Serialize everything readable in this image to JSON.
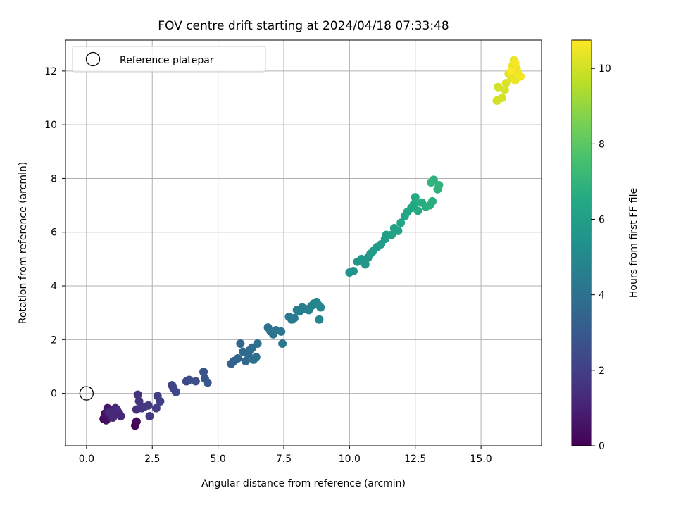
{
  "chart_data": {
    "type": "scatter",
    "title": "FOV centre drift starting at 2024/04/18 07:33:48",
    "xlabel": "Angular distance from reference (arcmin)",
    "ylabel": "Rotation from reference (arcmin)",
    "xlim": [
      -0.8,
      17.3
    ],
    "ylim": [
      -1.95,
      13.15
    ],
    "xticks": [
      0.0,
      2.5,
      5.0,
      7.5,
      10.0,
      12.5,
      15.0
    ],
    "xtick_labels": [
      "0.0",
      "2.5",
      "5.0",
      "7.5",
      "10.0",
      "12.5",
      "15.0"
    ],
    "yticks": [
      0,
      2,
      4,
      6,
      8,
      10,
      12
    ],
    "ytick_labels": [
      "0",
      "2",
      "4",
      "6",
      "8",
      "10",
      "12"
    ],
    "grid": true,
    "legend": {
      "placement": "upper-left",
      "entries": [
        "Reference platepar"
      ]
    },
    "reference_point": {
      "x": 0.0,
      "y": 0.0
    },
    "colorbar": {
      "label": "Hours from first FF file",
      "colormap": "viridis",
      "range": [
        0,
        10.75
      ],
      "ticks": [
        0,
        2,
        4,
        6,
        8,
        10
      ],
      "tick_labels": [
        "0",
        "2",
        "4",
        "6",
        "8",
        "10"
      ]
    },
    "points": [
      [
        1.85,
        -1.2,
        0.1
      ],
      [
        1.9,
        -1.05,
        0.2
      ],
      [
        0.65,
        -0.95,
        0.35
      ],
      [
        0.75,
        -1.0,
        0.4
      ],
      [
        0.7,
        -0.75,
        0.5
      ],
      [
        0.8,
        -0.55,
        0.6
      ],
      [
        0.9,
        -0.85,
        0.7
      ],
      [
        0.95,
        -0.65,
        0.8
      ],
      [
        1.05,
        -0.8,
        0.9
      ],
      [
        1.1,
        -0.55,
        1.0
      ],
      [
        1.2,
        -0.7,
        1.1
      ],
      [
        1.3,
        -0.85,
        1.2
      ],
      [
        1.0,
        -0.9,
        1.25
      ],
      [
        0.85,
        -0.7,
        1.3
      ],
      [
        1.15,
        -0.6,
        1.35
      ],
      [
        1.9,
        -0.6,
        1.45
      ],
      [
        1.95,
        -0.05,
        1.55
      ],
      [
        2.0,
        -0.3,
        1.6
      ],
      [
        2.1,
        -0.55,
        1.7
      ],
      [
        2.2,
        -0.5,
        1.75
      ],
      [
        2.35,
        -0.45,
        1.8
      ],
      [
        2.4,
        -0.85,
        1.85
      ],
      [
        2.65,
        -0.55,
        1.9
      ],
      [
        2.7,
        -0.1,
        1.95
      ],
      [
        2.8,
        -0.3,
        2.0
      ],
      [
        3.25,
        0.3,
        2.1
      ],
      [
        3.3,
        0.2,
        2.2
      ],
      [
        3.4,
        0.05,
        2.3
      ],
      [
        3.8,
        0.45,
        2.4
      ],
      [
        3.9,
        0.5,
        2.5
      ],
      [
        4.15,
        0.45,
        2.6
      ],
      [
        4.45,
        0.8,
        2.75
      ],
      [
        4.5,
        0.55,
        2.85
      ],
      [
        4.6,
        0.4,
        2.95
      ],
      [
        5.5,
        1.1,
        3.3
      ],
      [
        5.6,
        1.2,
        3.4
      ],
      [
        5.75,
        1.3,
        3.5
      ],
      [
        5.85,
        1.85,
        3.55
      ],
      [
        5.95,
        1.55,
        3.6
      ],
      [
        6.05,
        1.2,
        3.65
      ],
      [
        6.15,
        1.45,
        3.7
      ],
      [
        6.2,
        1.6,
        3.75
      ],
      [
        6.3,
        1.7,
        3.8
      ],
      [
        6.35,
        1.25,
        3.85
      ],
      [
        6.45,
        1.35,
        3.9
      ],
      [
        6.5,
        1.85,
        3.95
      ],
      [
        6.9,
        2.45,
        4.0
      ],
      [
        7.0,
        2.3,
        4.05
      ],
      [
        7.1,
        2.2,
        4.1
      ],
      [
        7.2,
        2.35,
        4.15
      ],
      [
        7.4,
        2.3,
        4.2
      ],
      [
        7.45,
        1.85,
        4.25
      ],
      [
        7.7,
        2.85,
        4.3
      ],
      [
        7.8,
        2.75,
        4.35
      ],
      [
        7.9,
        2.8,
        4.4
      ],
      [
        8.0,
        3.1,
        4.45
      ],
      [
        8.1,
        3.05,
        4.5
      ],
      [
        8.2,
        3.2,
        4.55
      ],
      [
        8.3,
        3.15,
        4.6
      ],
      [
        8.45,
        3.1,
        4.65
      ],
      [
        8.55,
        3.25,
        4.7
      ],
      [
        8.65,
        3.35,
        4.75
      ],
      [
        8.75,
        3.4,
        4.8
      ],
      [
        8.85,
        2.75,
        4.85
      ],
      [
        8.9,
        3.2,
        4.9
      ],
      [
        8.8,
        3.3,
        4.95
      ],
      [
        10.0,
        4.5,
        5.5
      ],
      [
        10.15,
        4.55,
        5.55
      ],
      [
        10.3,
        4.9,
        5.6
      ],
      [
        10.45,
        5.0,
        5.65
      ],
      [
        10.6,
        4.8,
        5.7
      ],
      [
        10.7,
        5.05,
        5.75
      ],
      [
        10.8,
        5.2,
        5.8
      ],
      [
        10.9,
        5.3,
        5.85
      ],
      [
        11.05,
        5.45,
        5.9
      ],
      [
        11.2,
        5.55,
        5.95
      ],
      [
        11.35,
        5.75,
        6.0
      ],
      [
        11.4,
        5.9,
        6.05
      ],
      [
        11.6,
        5.9,
        6.1
      ],
      [
        11.7,
        6.15,
        6.15
      ],
      [
        11.85,
        6.05,
        6.2
      ],
      [
        11.95,
        6.35,
        6.25
      ],
      [
        12.1,
        6.6,
        6.3
      ],
      [
        12.2,
        6.75,
        6.35
      ],
      [
        12.35,
        6.9,
        6.4
      ],
      [
        12.45,
        7.05,
        6.45
      ],
      [
        12.5,
        7.3,
        6.5
      ],
      [
        12.6,
        6.8,
        6.55
      ],
      [
        12.75,
        7.1,
        6.6
      ],
      [
        12.9,
        6.95,
        6.65
      ],
      [
        13.05,
        7.0,
        6.7
      ],
      [
        13.15,
        7.15,
        6.75
      ],
      [
        13.2,
        7.95,
        6.8
      ],
      [
        13.35,
        7.6,
        6.85
      ],
      [
        13.4,
        7.75,
        6.9
      ],
      [
        13.1,
        7.85,
        7.0
      ],
      [
        15.6,
        10.9,
        10.0
      ],
      [
        15.65,
        11.4,
        10.05
      ],
      [
        15.8,
        11.0,
        10.1
      ],
      [
        15.9,
        11.3,
        10.15
      ],
      [
        15.95,
        11.55,
        10.2
      ],
      [
        16.05,
        11.9,
        10.25
      ],
      [
        16.15,
        11.75,
        10.3
      ],
      [
        16.2,
        12.2,
        10.35
      ],
      [
        16.25,
        12.4,
        10.4
      ],
      [
        16.3,
        11.65,
        10.45
      ],
      [
        16.35,
        12.1,
        10.5
      ],
      [
        16.4,
        11.95,
        10.55
      ],
      [
        16.5,
        11.8,
        10.6
      ],
      [
        16.3,
        12.3,
        10.65
      ],
      [
        16.15,
        12.0,
        10.7
      ]
    ]
  }
}
